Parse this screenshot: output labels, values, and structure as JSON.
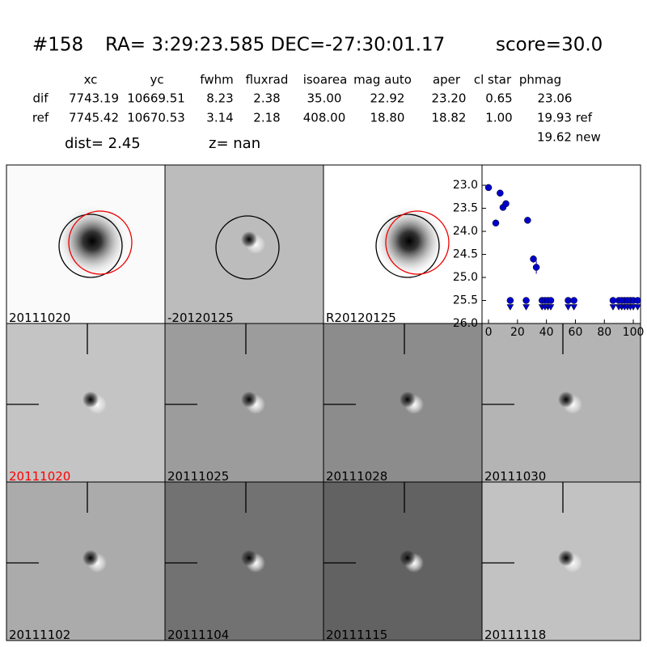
{
  "header": {
    "id": "#158",
    "coords": "RA= 3:29:23.585 DEC=-27:30:01.17",
    "score": "score=30.0"
  },
  "table": {
    "columns": [
      "xc",
      "yc",
      "fwhm",
      "fluxrad",
      "isoarea",
      "mag auto",
      "aper",
      "cl star",
      "phmag"
    ],
    "rows": [
      [
        "dif",
        "7743.19",
        "10669.51",
        "8.23",
        "2.38",
        "35.00",
        "22.92",
        "23.20",
        "0.65",
        "23.06"
      ],
      [
        "ref",
        "7745.42",
        "10670.53",
        "3.14",
        "2.18",
        "408.00",
        "18.80",
        "18.82",
        "1.00",
        "19.93 ref"
      ]
    ],
    "extra": "19.62 new"
  },
  "dist": "dist=  2.45",
  "z": "z=   nan",
  "panels": [
    {
      "label": "20111020"
    },
    {
      "label": "-20120125"
    },
    {
      "label": "R20120125"
    },
    {
      "label": "20111020"
    },
    {
      "label": "20111025"
    },
    {
      "label": "20111028"
    },
    {
      "label": "20111030"
    },
    {
      "label": "20111102"
    },
    {
      "label": "20111104"
    },
    {
      "label": "20111115"
    },
    {
      "label": "20111118"
    }
  ],
  "chart_data": {
    "type": "scatter",
    "xlim": [
      -4.5,
      105
    ],
    "ylim": [
      26.0,
      22.56
    ],
    "xticks": [
      0,
      20,
      40,
      60,
      80,
      100
    ],
    "yticks": [
      {
        "value": 23,
        "label": "23.0"
      },
      {
        "value": 23.5,
        "label": "23.5"
      },
      {
        "value": 24,
        "label": "24.0"
      },
      {
        "value": 24.5,
        "label": "24.5"
      },
      {
        "value": 25,
        "label": "25.0"
      },
      {
        "value": 25.5,
        "label": "25.5"
      },
      {
        "value": 26,
        "label": "26.0"
      }
    ],
    "series": [
      {
        "color": "#0000cc",
        "x": [
          0,
          5,
          8,
          10,
          12,
          27,
          31,
          33
        ],
        "values": [
          23.05,
          23.82,
          23.17,
          23.48,
          23.4,
          23.76,
          24.6,
          24.78
        ],
        "errors": [
          0.04,
          0.05,
          0.04,
          0.05,
          0.05,
          0.06,
          0.08,
          0.14
        ]
      },
      {
        "color": "#0000cc",
        "marker": "upper-limit",
        "x": [
          15,
          26,
          37,
          39,
          41,
          43,
          55,
          59,
          86,
          90,
          92,
          94,
          96,
          98,
          100,
          103
        ],
        "values": [
          25.5,
          25.5,
          25.5,
          25.5,
          25.5,
          25.5,
          25.5,
          25.5,
          25.5,
          25.5,
          25.5,
          25.5,
          25.5,
          25.5,
          25.5,
          25.5
        ]
      }
    ]
  }
}
